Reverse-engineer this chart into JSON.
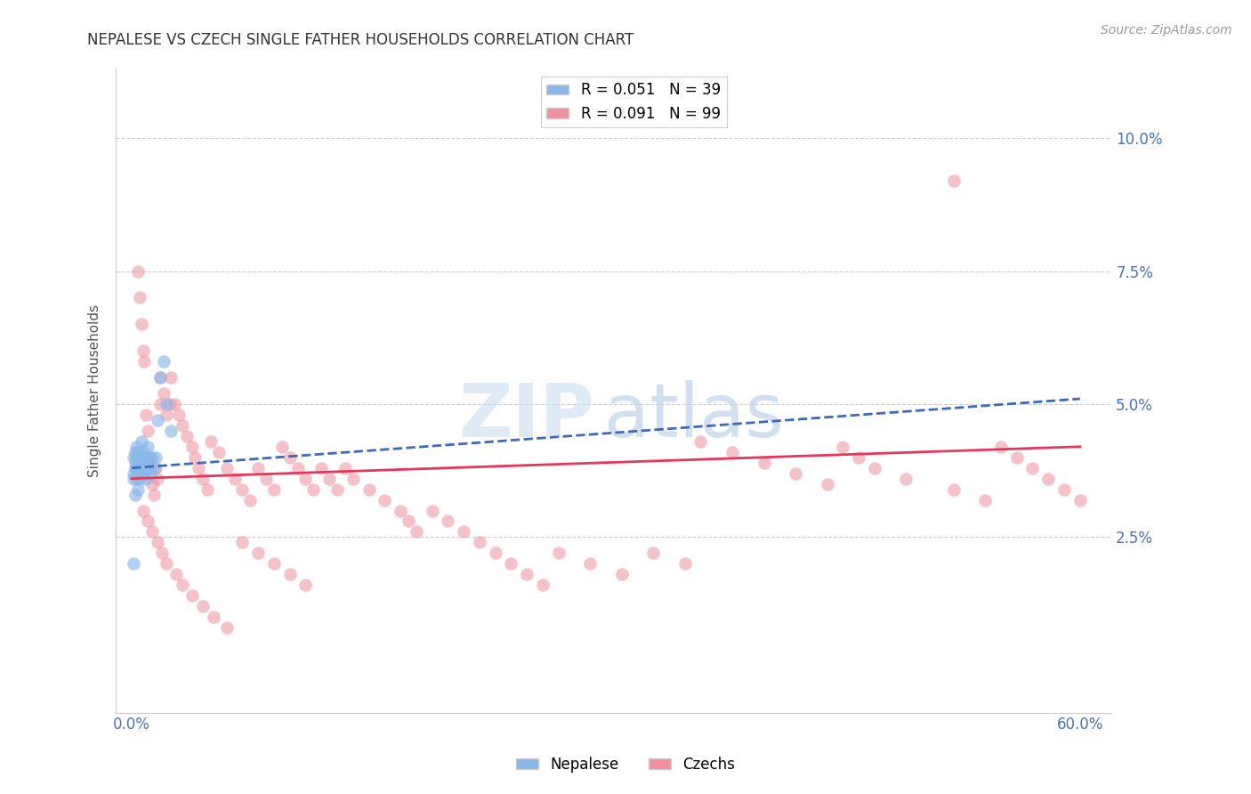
{
  "title": "NEPALESE VS CZECH SINGLE FATHER HOUSEHOLDS CORRELATION CHART",
  "source": "Source: ZipAtlas.com",
  "ylabel": "Single Father Households",
  "ytick_labels": [
    "2.5%",
    "5.0%",
    "7.5%",
    "10.0%"
  ],
  "ytick_values": [
    0.025,
    0.05,
    0.075,
    0.1
  ],
  "xlim": [
    0.0,
    0.6
  ],
  "ylim": [
    0.0,
    0.11
  ],
  "color_nepalese": "#8ab8e8",
  "color_czechs": "#f090a0",
  "color_trendline_nepalese": "#3a6abf",
  "color_trendline_czechs": "#e8355a",
  "trendline_nepalese_x0": 0.0,
  "trendline_nepalese_y0": 0.038,
  "trendline_nepalese_x1": 0.6,
  "trendline_nepalese_y1": 0.051,
  "trendline_czechs_x0": 0.0,
  "trendline_czechs_y0": 0.036,
  "trendline_czechs_x1": 0.6,
  "trendline_czechs_y1": 0.042,
  "nepalese_x": [
    0.001,
    0.001,
    0.001,
    0.002,
    0.002,
    0.002,
    0.002,
    0.003,
    0.003,
    0.003,
    0.003,
    0.004,
    0.004,
    0.004,
    0.005,
    0.005,
    0.005,
    0.006,
    0.006,
    0.006,
    0.007,
    0.007,
    0.008,
    0.008,
    0.009,
    0.009,
    0.01,
    0.01,
    0.011,
    0.012,
    0.013,
    0.014,
    0.015,
    0.016,
    0.018,
    0.02,
    0.022,
    0.001,
    0.025
  ],
  "nepalese_y": [
    0.04,
    0.037,
    0.036,
    0.041,
    0.039,
    0.038,
    0.033,
    0.042,
    0.04,
    0.038,
    0.036,
    0.041,
    0.038,
    0.034,
    0.04,
    0.038,
    0.036,
    0.043,
    0.039,
    0.037,
    0.041,
    0.038,
    0.04,
    0.037,
    0.039,
    0.036,
    0.042,
    0.038,
    0.04,
    0.037,
    0.04,
    0.038,
    0.04,
    0.047,
    0.055,
    0.058,
    0.05,
    0.02,
    0.045
  ],
  "czechs_x": [
    0.004,
    0.005,
    0.006,
    0.007,
    0.008,
    0.009,
    0.01,
    0.011,
    0.012,
    0.013,
    0.014,
    0.015,
    0.016,
    0.018,
    0.018,
    0.02,
    0.022,
    0.024,
    0.025,
    0.027,
    0.03,
    0.032,
    0.035,
    0.038,
    0.04,
    0.042,
    0.045,
    0.048,
    0.05,
    0.055,
    0.06,
    0.065,
    0.07,
    0.075,
    0.08,
    0.085,
    0.09,
    0.095,
    0.1,
    0.105,
    0.11,
    0.115,
    0.12,
    0.125,
    0.13,
    0.135,
    0.14,
    0.15,
    0.16,
    0.17,
    0.175,
    0.18,
    0.19,
    0.2,
    0.21,
    0.22,
    0.23,
    0.24,
    0.25,
    0.26,
    0.27,
    0.29,
    0.31,
    0.33,
    0.35,
    0.36,
    0.38,
    0.4,
    0.42,
    0.44,
    0.45,
    0.46,
    0.47,
    0.49,
    0.52,
    0.54,
    0.55,
    0.56,
    0.57,
    0.58,
    0.59,
    0.6,
    0.007,
    0.01,
    0.013,
    0.016,
    0.019,
    0.022,
    0.028,
    0.032,
    0.038,
    0.045,
    0.052,
    0.06,
    0.07,
    0.08,
    0.09,
    0.1,
    0.11,
    0.125
  ],
  "czechs_y": [
    0.075,
    0.07,
    0.065,
    0.06,
    0.058,
    0.048,
    0.045,
    0.04,
    0.038,
    0.035,
    0.033,
    0.038,
    0.036,
    0.055,
    0.05,
    0.052,
    0.048,
    0.05,
    0.055,
    0.05,
    0.048,
    0.046,
    0.044,
    0.042,
    0.04,
    0.038,
    0.036,
    0.034,
    0.043,
    0.041,
    0.038,
    0.036,
    0.034,
    0.032,
    0.038,
    0.036,
    0.034,
    0.042,
    0.04,
    0.038,
    0.036,
    0.034,
    0.038,
    0.036,
    0.034,
    0.038,
    0.036,
    0.034,
    0.032,
    0.03,
    0.028,
    0.026,
    0.03,
    0.028,
    0.026,
    0.024,
    0.022,
    0.02,
    0.018,
    0.016,
    0.022,
    0.02,
    0.018,
    0.022,
    0.02,
    0.043,
    0.041,
    0.039,
    0.037,
    0.035,
    0.042,
    0.04,
    0.038,
    0.036,
    0.034,
    0.032,
    0.042,
    0.04,
    0.038,
    0.036,
    0.034,
    0.032,
    0.03,
    0.028,
    0.026,
    0.024,
    0.022,
    0.02,
    0.018,
    0.016,
    0.014,
    0.012,
    0.01,
    0.008,
    0.024,
    0.022,
    0.02,
    0.018,
    0.016,
    0.014
  ]
}
